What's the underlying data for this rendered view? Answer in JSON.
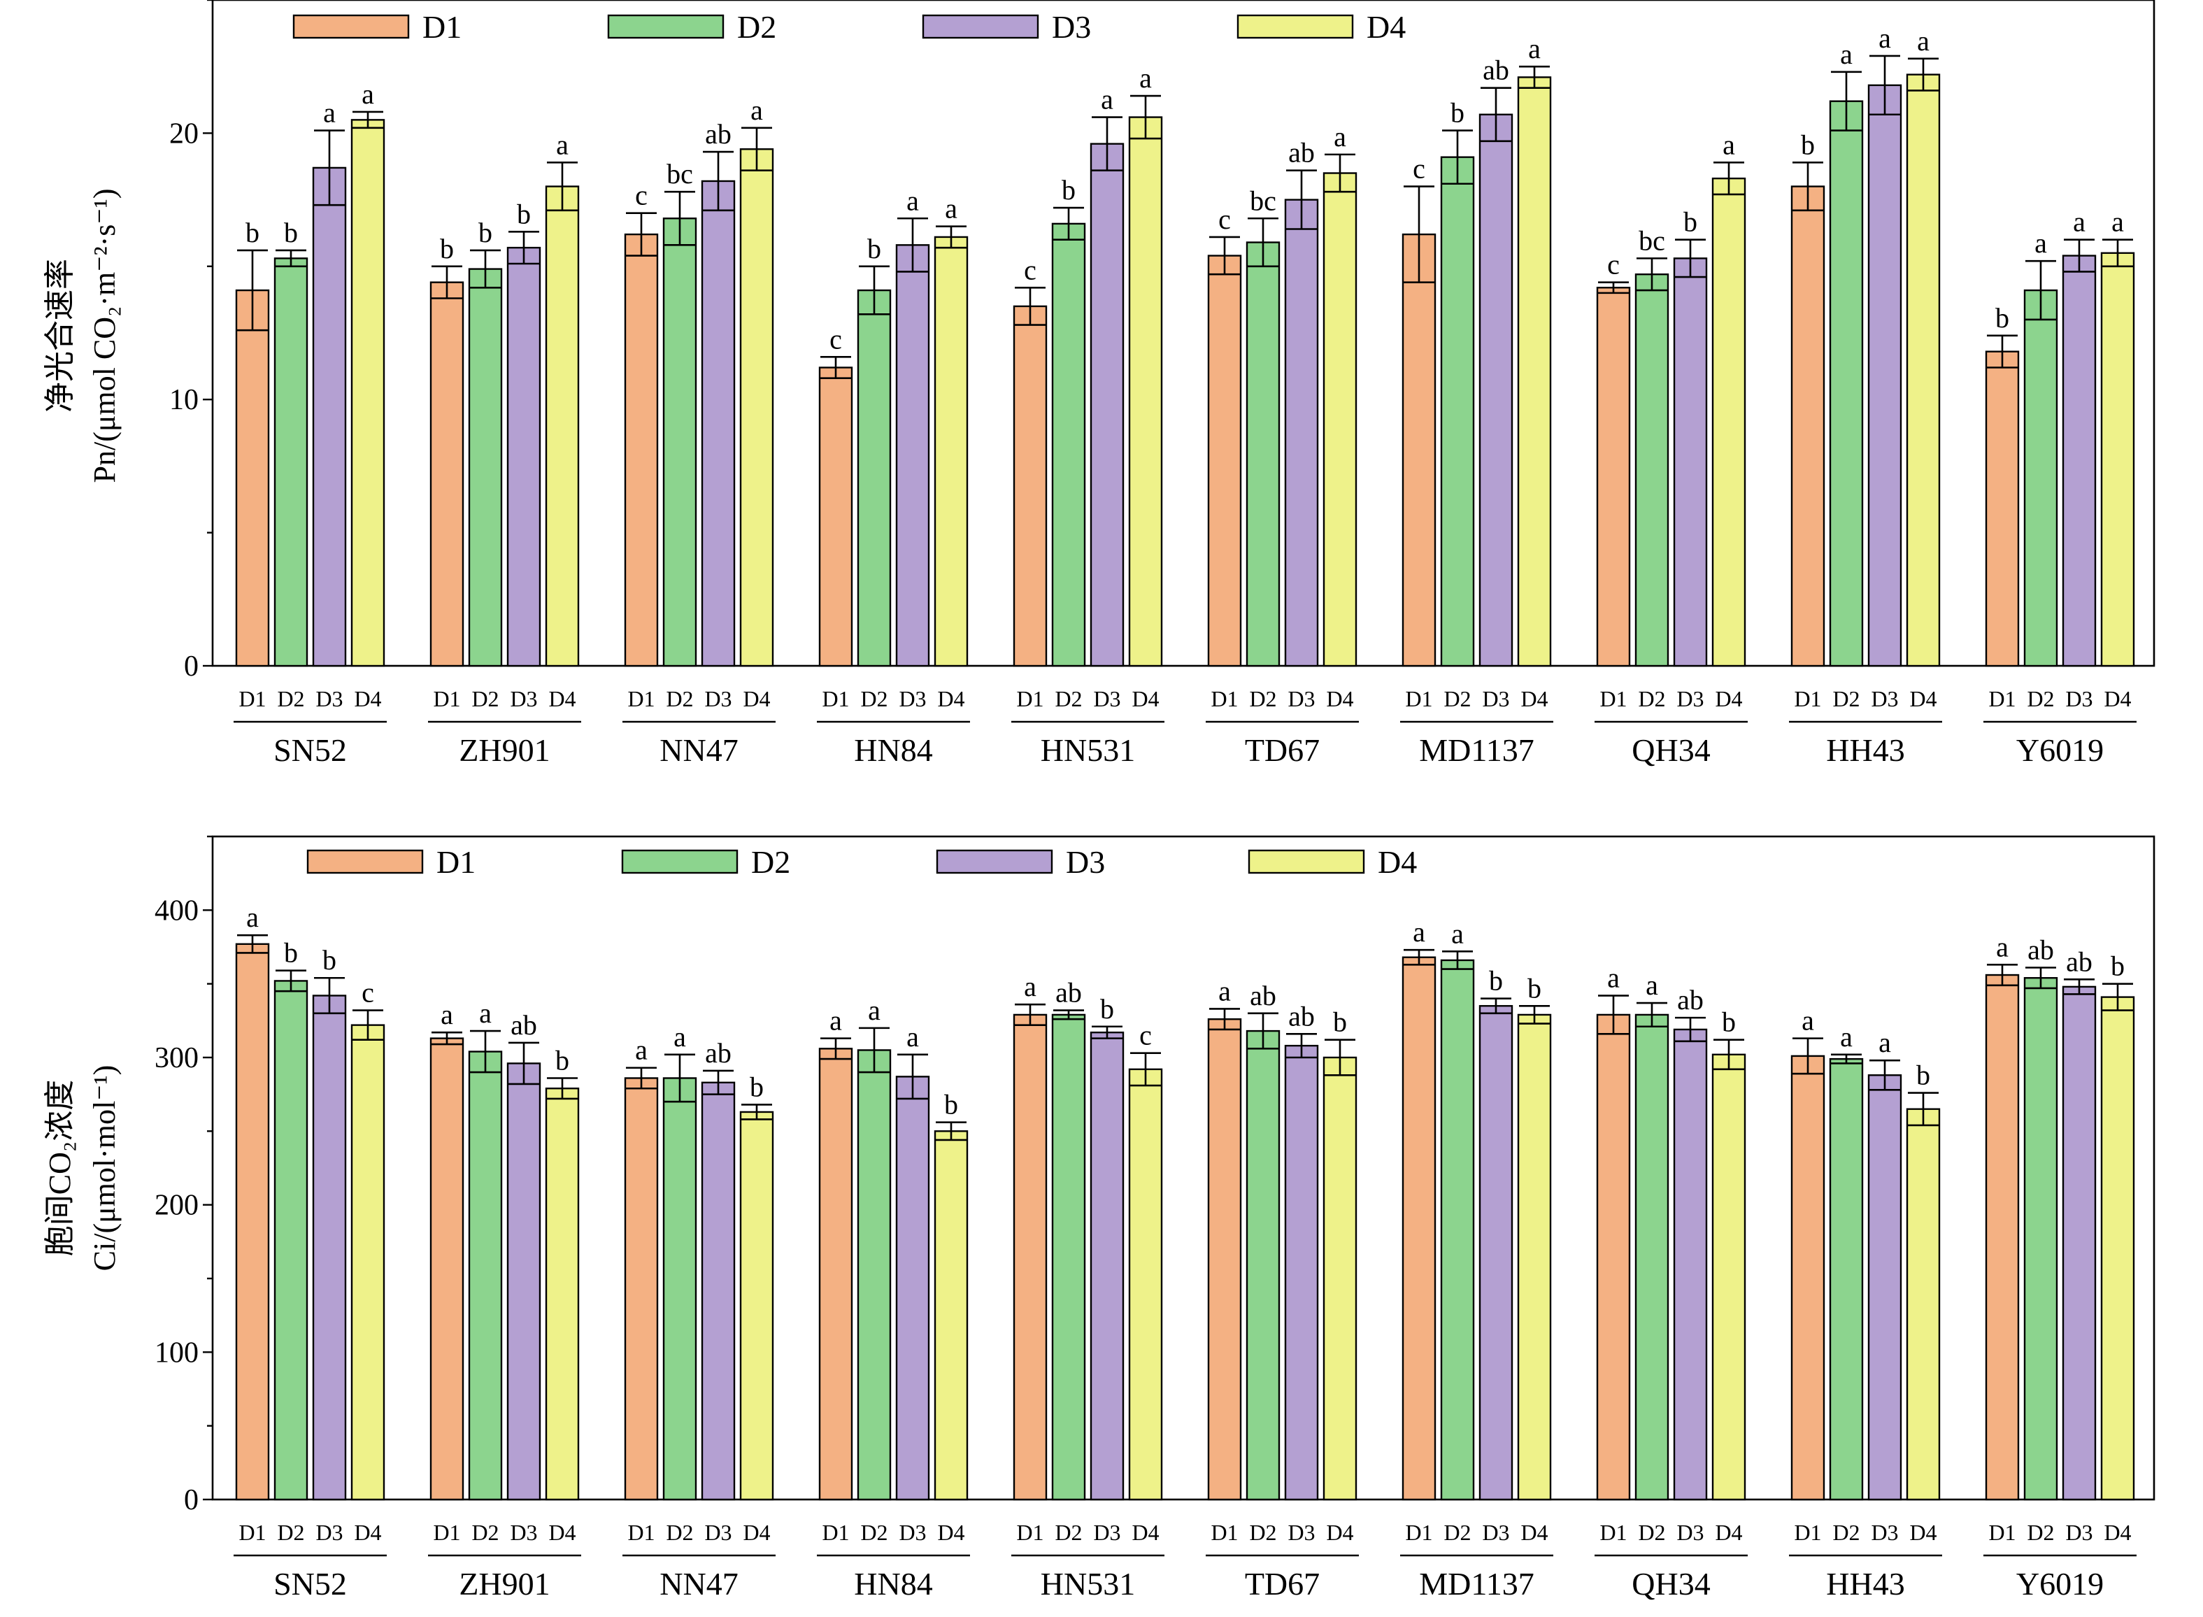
{
  "chart_data": [
    {
      "type": "bar",
      "ylabel_line1": "净光合速率",
      "ylabel_line2": "Pn/(μmol CO₂·m⁻²·s⁻¹)",
      "ylim": [
        0,
        25
      ],
      "yticks": [
        0,
        10,
        20
      ],
      "legend": [
        "D1",
        "D2",
        "D3",
        "D4"
      ],
      "legend_placement": "top",
      "colors": [
        "#F4B183",
        "#8CD48E",
        "#B4A0D2",
        "#EEF28A"
      ],
      "sub_labels": [
        "D1",
        "D2",
        "D3",
        "D4"
      ],
      "categories": [
        "SN52",
        "ZH901",
        "NN47",
        "HN84",
        "HN531",
        "TD67",
        "MD1137",
        "QH34",
        "HH43",
        "Y6019"
      ],
      "series": [
        {
          "name": "D1",
          "values": [
            14.1,
            14.4,
            16.2,
            11.2,
            13.5,
            15.4,
            16.2,
            14.2,
            18.0,
            11.8
          ],
          "errors": [
            1.5,
            0.6,
            0.8,
            0.4,
            0.7,
            0.7,
            1.8,
            0.2,
            0.9,
            0.6
          ],
          "letters": [
            "b",
            "b",
            "c",
            "c",
            "c",
            "c",
            "c",
            "c",
            "b",
            "b"
          ]
        },
        {
          "name": "D2",
          "values": [
            15.3,
            14.9,
            16.8,
            14.1,
            16.6,
            15.9,
            19.1,
            14.7,
            21.2,
            14.1
          ],
          "errors": [
            0.3,
            0.7,
            1.0,
            0.9,
            0.6,
            0.9,
            1.0,
            0.6,
            1.1,
            1.1
          ],
          "letters": [
            "b",
            "b",
            "bc",
            "b",
            "b",
            "bc",
            "b",
            "bc",
            "a",
            "a"
          ]
        },
        {
          "name": "D3",
          "values": [
            18.7,
            15.7,
            18.2,
            15.8,
            19.6,
            17.5,
            20.7,
            15.3,
            21.8,
            15.4
          ],
          "errors": [
            1.4,
            0.6,
            1.1,
            1.0,
            1.0,
            1.1,
            1.0,
            0.7,
            1.1,
            0.6
          ],
          "letters": [
            "a",
            "b",
            "ab",
            "a",
            "a",
            "ab",
            "ab",
            "b",
            "a",
            "a"
          ]
        },
        {
          "name": "D4",
          "values": [
            20.5,
            18.0,
            19.4,
            16.1,
            20.6,
            18.5,
            22.1,
            18.3,
            22.2,
            15.5
          ],
          "errors": [
            0.3,
            0.9,
            0.8,
            0.4,
            0.8,
            0.7,
            0.4,
            0.6,
            0.6,
            0.5
          ],
          "letters": [
            "a",
            "a",
            "a",
            "a",
            "a",
            "a",
            "a",
            "a",
            "a",
            "a"
          ]
        }
      ]
    },
    {
      "type": "bar",
      "ylabel_line1": "胞间CO₂浓度",
      "ylabel_line2": "Ci/(μmol·mol⁻¹)",
      "ylim": [
        0,
        450
      ],
      "yticks": [
        0,
        100,
        200,
        300,
        400
      ],
      "legend": [
        "D1",
        "D2",
        "D3",
        "D4"
      ],
      "legend_placement": "top",
      "colors": [
        "#F4B183",
        "#8CD48E",
        "#B4A0D2",
        "#EEF28A"
      ],
      "sub_labels": [
        "D1",
        "D2",
        "D3",
        "D4"
      ],
      "categories": [
        "SN52",
        "ZH901",
        "NN47",
        "HN84",
        "HN531",
        "TD67",
        "MD1137",
        "QH34",
        "HH43",
        "Y6019"
      ],
      "series": [
        {
          "name": "D1",
          "values": [
            377,
            313,
            286,
            306,
            329,
            326,
            368,
            329,
            301,
            356
          ],
          "errors": [
            6,
            4,
            7,
            7,
            7,
            7,
            5,
            13,
            12,
            7
          ],
          "letters": [
            "a",
            "a",
            "a",
            "a",
            "a",
            "a",
            "a",
            "a",
            "a",
            "a"
          ]
        },
        {
          "name": "D2",
          "values": [
            352,
            304,
            286,
            305,
            329,
            318,
            366,
            329,
            299,
            354
          ],
          "errors": [
            7,
            14,
            16,
            15,
            3,
            12,
            6,
            8,
            3,
            7
          ],
          "letters": [
            "b",
            "a",
            "a",
            "a",
            "ab",
            "ab",
            "a",
            "a",
            "a",
            "ab"
          ]
        },
        {
          "name": "D3",
          "values": [
            342,
            296,
            283,
            287,
            317,
            308,
            335,
            319,
            288,
            348
          ],
          "errors": [
            12,
            14,
            8,
            15,
            4,
            8,
            5,
            8,
            10,
            5
          ],
          "letters": [
            "b",
            "ab",
            "ab",
            "a",
            "b",
            "ab",
            "b",
            "ab",
            "a",
            "ab"
          ]
        },
        {
          "name": "D4",
          "values": [
            322,
            279,
            263,
            250,
            292,
            300,
            329,
            302,
            265,
            341
          ],
          "errors": [
            10,
            7,
            5,
            6,
            11,
            12,
            6,
            10,
            11,
            9
          ],
          "letters": [
            "c",
            "b",
            "b",
            "b",
            "c",
            "b",
            "b",
            "b",
            "b",
            "b"
          ]
        }
      ]
    }
  ]
}
